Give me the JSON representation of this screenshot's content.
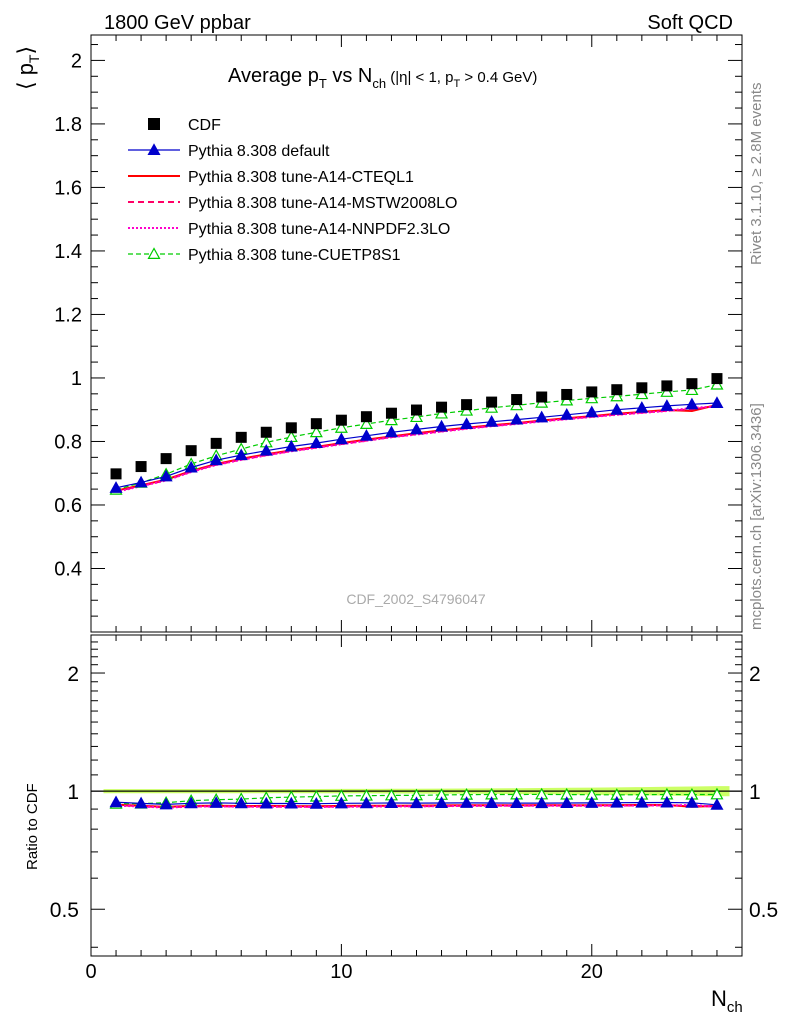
{
  "header": {
    "left": "1800 GeV ppbar",
    "right": "Soft QCD"
  },
  "side_labels": {
    "top": "Rivet 3.1.10, ≥ 2.8M events",
    "bottom": "mcplots.cern.ch [arXiv:1306.3436]"
  },
  "watermark": "CDF_2002_S4796047",
  "main_title": {
    "text": "Average p",
    "sub1": "T",
    "mid": " vs N",
    "sub2": "ch",
    "suffix": " (|η| < 1, p",
    "sub3": "T",
    "end": " > 0.4 GeV)"
  },
  "ylabel_main": "⟨ p",
  "ylabel_main_sub": "T",
  "ylabel_main_close": "⟩",
  "ylabel_ratio": "Ratio to CDF",
  "xlabel": "N",
  "xlabel_sub": "ch",
  "colors": {
    "cdf": "#000000",
    "default": "#0000cc",
    "cteql1": "#ff0000",
    "mstw": "#ff0066",
    "nnpdf": "#ff00cc",
    "cuetp8s1": "#00cc00",
    "band": "#ccff66"
  },
  "legend": [
    {
      "label": "CDF",
      "style": "square"
    },
    {
      "label": "Pythia 8.308 default",
      "style": "blue-triangle"
    },
    {
      "label": "Pythia 8.308 tune-A14-CTEQL1",
      "style": "red-solid"
    },
    {
      "label": "Pythia 8.308 tune-A14-MSTW2008LO",
      "style": "pink-dashed"
    },
    {
      "label": "Pythia 8.308 tune-A14-NNPDF2.3LO",
      "style": "magenta-dotted"
    },
    {
      "label": "Pythia 8.308 tune-CUETP8S1",
      "style": "green-open-triangle"
    }
  ],
  "chart_data": {
    "type": "line",
    "x": [
      1,
      2,
      3,
      4,
      5,
      6,
      7,
      8,
      9,
      10,
      11,
      12,
      13,
      14,
      15,
      16,
      17,
      18,
      19,
      20,
      21,
      22,
      23,
      24,
      25
    ],
    "xlim": [
      0,
      26
    ],
    "xticks": [
      0,
      10,
      20
    ],
    "ylim": [
      0.2,
      2.08
    ],
    "yticks": [
      0.4,
      0.6,
      0.8,
      1,
      1.2,
      1.4,
      1.6,
      1.8,
      2
    ],
    "ratio_ylim": [
      0.38,
      2.5
    ],
    "ratio_ylog": true,
    "ratio_yticks": [
      0.5,
      1,
      2
    ],
    "series": [
      {
        "name": "CDF",
        "key": "cdf",
        "values": [
          0.698,
          0.721,
          0.746,
          0.771,
          0.794,
          0.813,
          0.829,
          0.843,
          0.856,
          0.867,
          0.878,
          0.889,
          0.899,
          0.908,
          0.916,
          0.924,
          0.932,
          0.94,
          0.948,
          0.956,
          0.963,
          0.969,
          0.975,
          0.982,
          0.998
        ]
      },
      {
        "name": "Pythia 8.308 default",
        "key": "default",
        "values": [
          0.654,
          0.671,
          0.69,
          0.718,
          0.741,
          0.757,
          0.771,
          0.784,
          0.795,
          0.807,
          0.818,
          0.829,
          0.838,
          0.847,
          0.855,
          0.862,
          0.869,
          0.876,
          0.884,
          0.892,
          0.9,
          0.906,
          0.912,
          0.917,
          0.921
        ]
      },
      {
        "name": "Pythia 8.308 tune-A14-CTEQL1",
        "key": "cteql1",
        "values": [
          0.645,
          0.662,
          0.68,
          0.707,
          0.729,
          0.745,
          0.76,
          0.772,
          0.783,
          0.795,
          0.806,
          0.816,
          0.826,
          0.835,
          0.843,
          0.851,
          0.858,
          0.866,
          0.873,
          0.88,
          0.887,
          0.893,
          0.899,
          0.896,
          0.915
        ]
      },
      {
        "name": "Pythia 8.308 tune-A14-MSTW2008LO",
        "key": "mstw",
        "values": [
          0.643,
          0.66,
          0.678,
          0.705,
          0.727,
          0.743,
          0.757,
          0.77,
          0.781,
          0.792,
          0.803,
          0.814,
          0.823,
          0.832,
          0.841,
          0.849,
          0.856,
          0.864,
          0.871,
          0.878,
          0.885,
          0.891,
          0.897,
          0.901,
          0.912
        ]
      },
      {
        "name": "Pythia 8.308 tune-A14-NNPDF2.3LO",
        "key": "nnpdf",
        "values": [
          0.641,
          0.659,
          0.677,
          0.704,
          0.726,
          0.742,
          0.756,
          0.769,
          0.78,
          0.791,
          0.802,
          0.813,
          0.822,
          0.831,
          0.84,
          0.848,
          0.855,
          0.863,
          0.87,
          0.877,
          0.884,
          0.89,
          0.896,
          0.906,
          0.91
        ]
      },
      {
        "name": "Pythia 8.308 tune-CUETP8S1",
        "key": "cuetp8s1",
        "values": [
          0.648,
          0.67,
          0.697,
          0.729,
          0.755,
          0.776,
          0.797,
          0.814,
          0.829,
          0.843,
          0.855,
          0.867,
          0.877,
          0.888,
          0.897,
          0.906,
          0.914,
          0.922,
          0.929,
          0.936,
          0.942,
          0.949,
          0.956,
          0.962,
          0.979
        ]
      }
    ]
  }
}
